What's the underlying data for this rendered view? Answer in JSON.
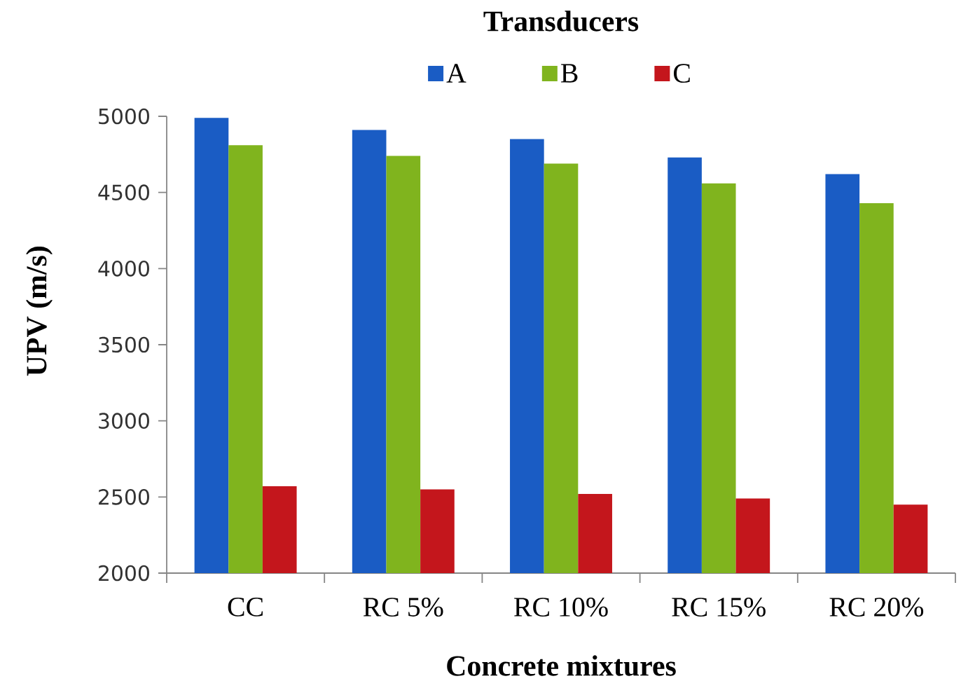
{
  "chart_data": {
    "type": "bar",
    "legend_title": "Transducers",
    "xlabel": "Concrete mixtures",
    "ylabel": "UPV (m/s)",
    "categories": [
      "CC",
      "RC 5%",
      "RC 10%",
      "RC 15%",
      "RC 20%"
    ],
    "series": [
      {
        "name": "A",
        "color": "#1a5cc4",
        "values": [
          4990,
          4910,
          4850,
          4730,
          4620
        ]
      },
      {
        "name": "B",
        "color": "#80b41e",
        "values": [
          4810,
          4740,
          4690,
          4560,
          4430
        ]
      },
      {
        "name": "C",
        "color": "#c4161c",
        "values": [
          2570,
          2550,
          2520,
          2490,
          2450
        ]
      }
    ],
    "ylim": [
      2000,
      5000
    ],
    "yticks": [
      2000,
      2500,
      3000,
      3500,
      4000,
      4500,
      5000
    ],
    "legend": "top"
  }
}
